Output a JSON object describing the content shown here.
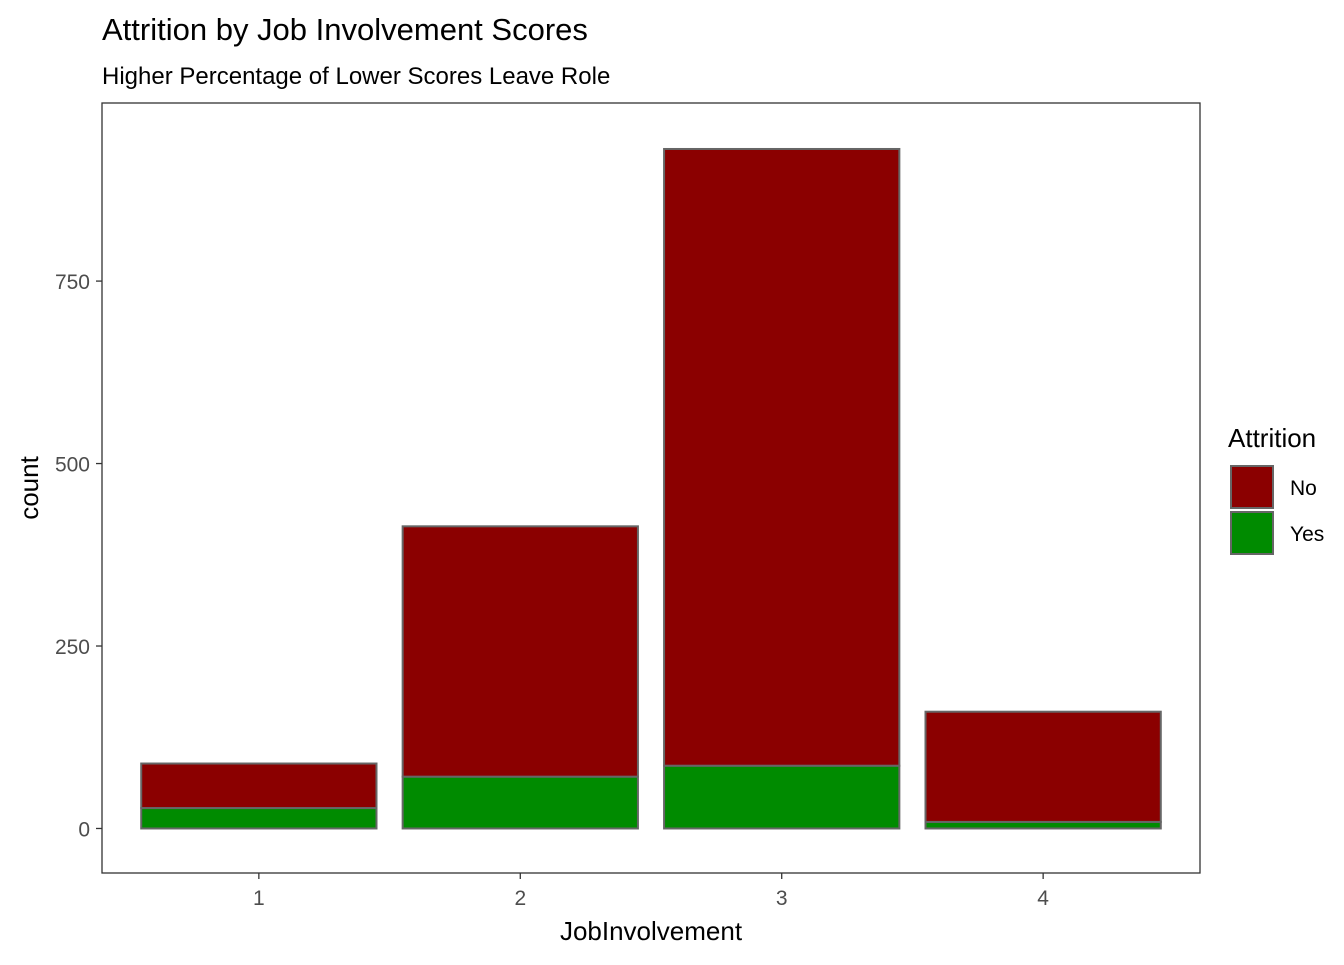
{
  "chart_data": {
    "type": "bar",
    "stacked": true,
    "title": "Attrition by Job Involvement Scores",
    "subtitle": "Higher Percentage of Lower Scores Leave Role",
    "xlabel": "JobInvolvement",
    "ylabel": "count",
    "categories": [
      "1",
      "2",
      "3",
      "4"
    ],
    "ylim": [
      -61,
      994
    ],
    "yticks": [
      0,
      250,
      500,
      750
    ],
    "grid": false,
    "series": [
      {
        "name": "No",
        "color": "#8B0000",
        "values": [
          61,
          343,
          845,
          151
        ]
      },
      {
        "name": "Yes",
        "color": "#008B00",
        "values": [
          28,
          71,
          86,
          9
        ]
      }
    ],
    "legend": {
      "title": "Attrition",
      "position": "right",
      "entries": [
        "No",
        "Yes"
      ]
    }
  }
}
